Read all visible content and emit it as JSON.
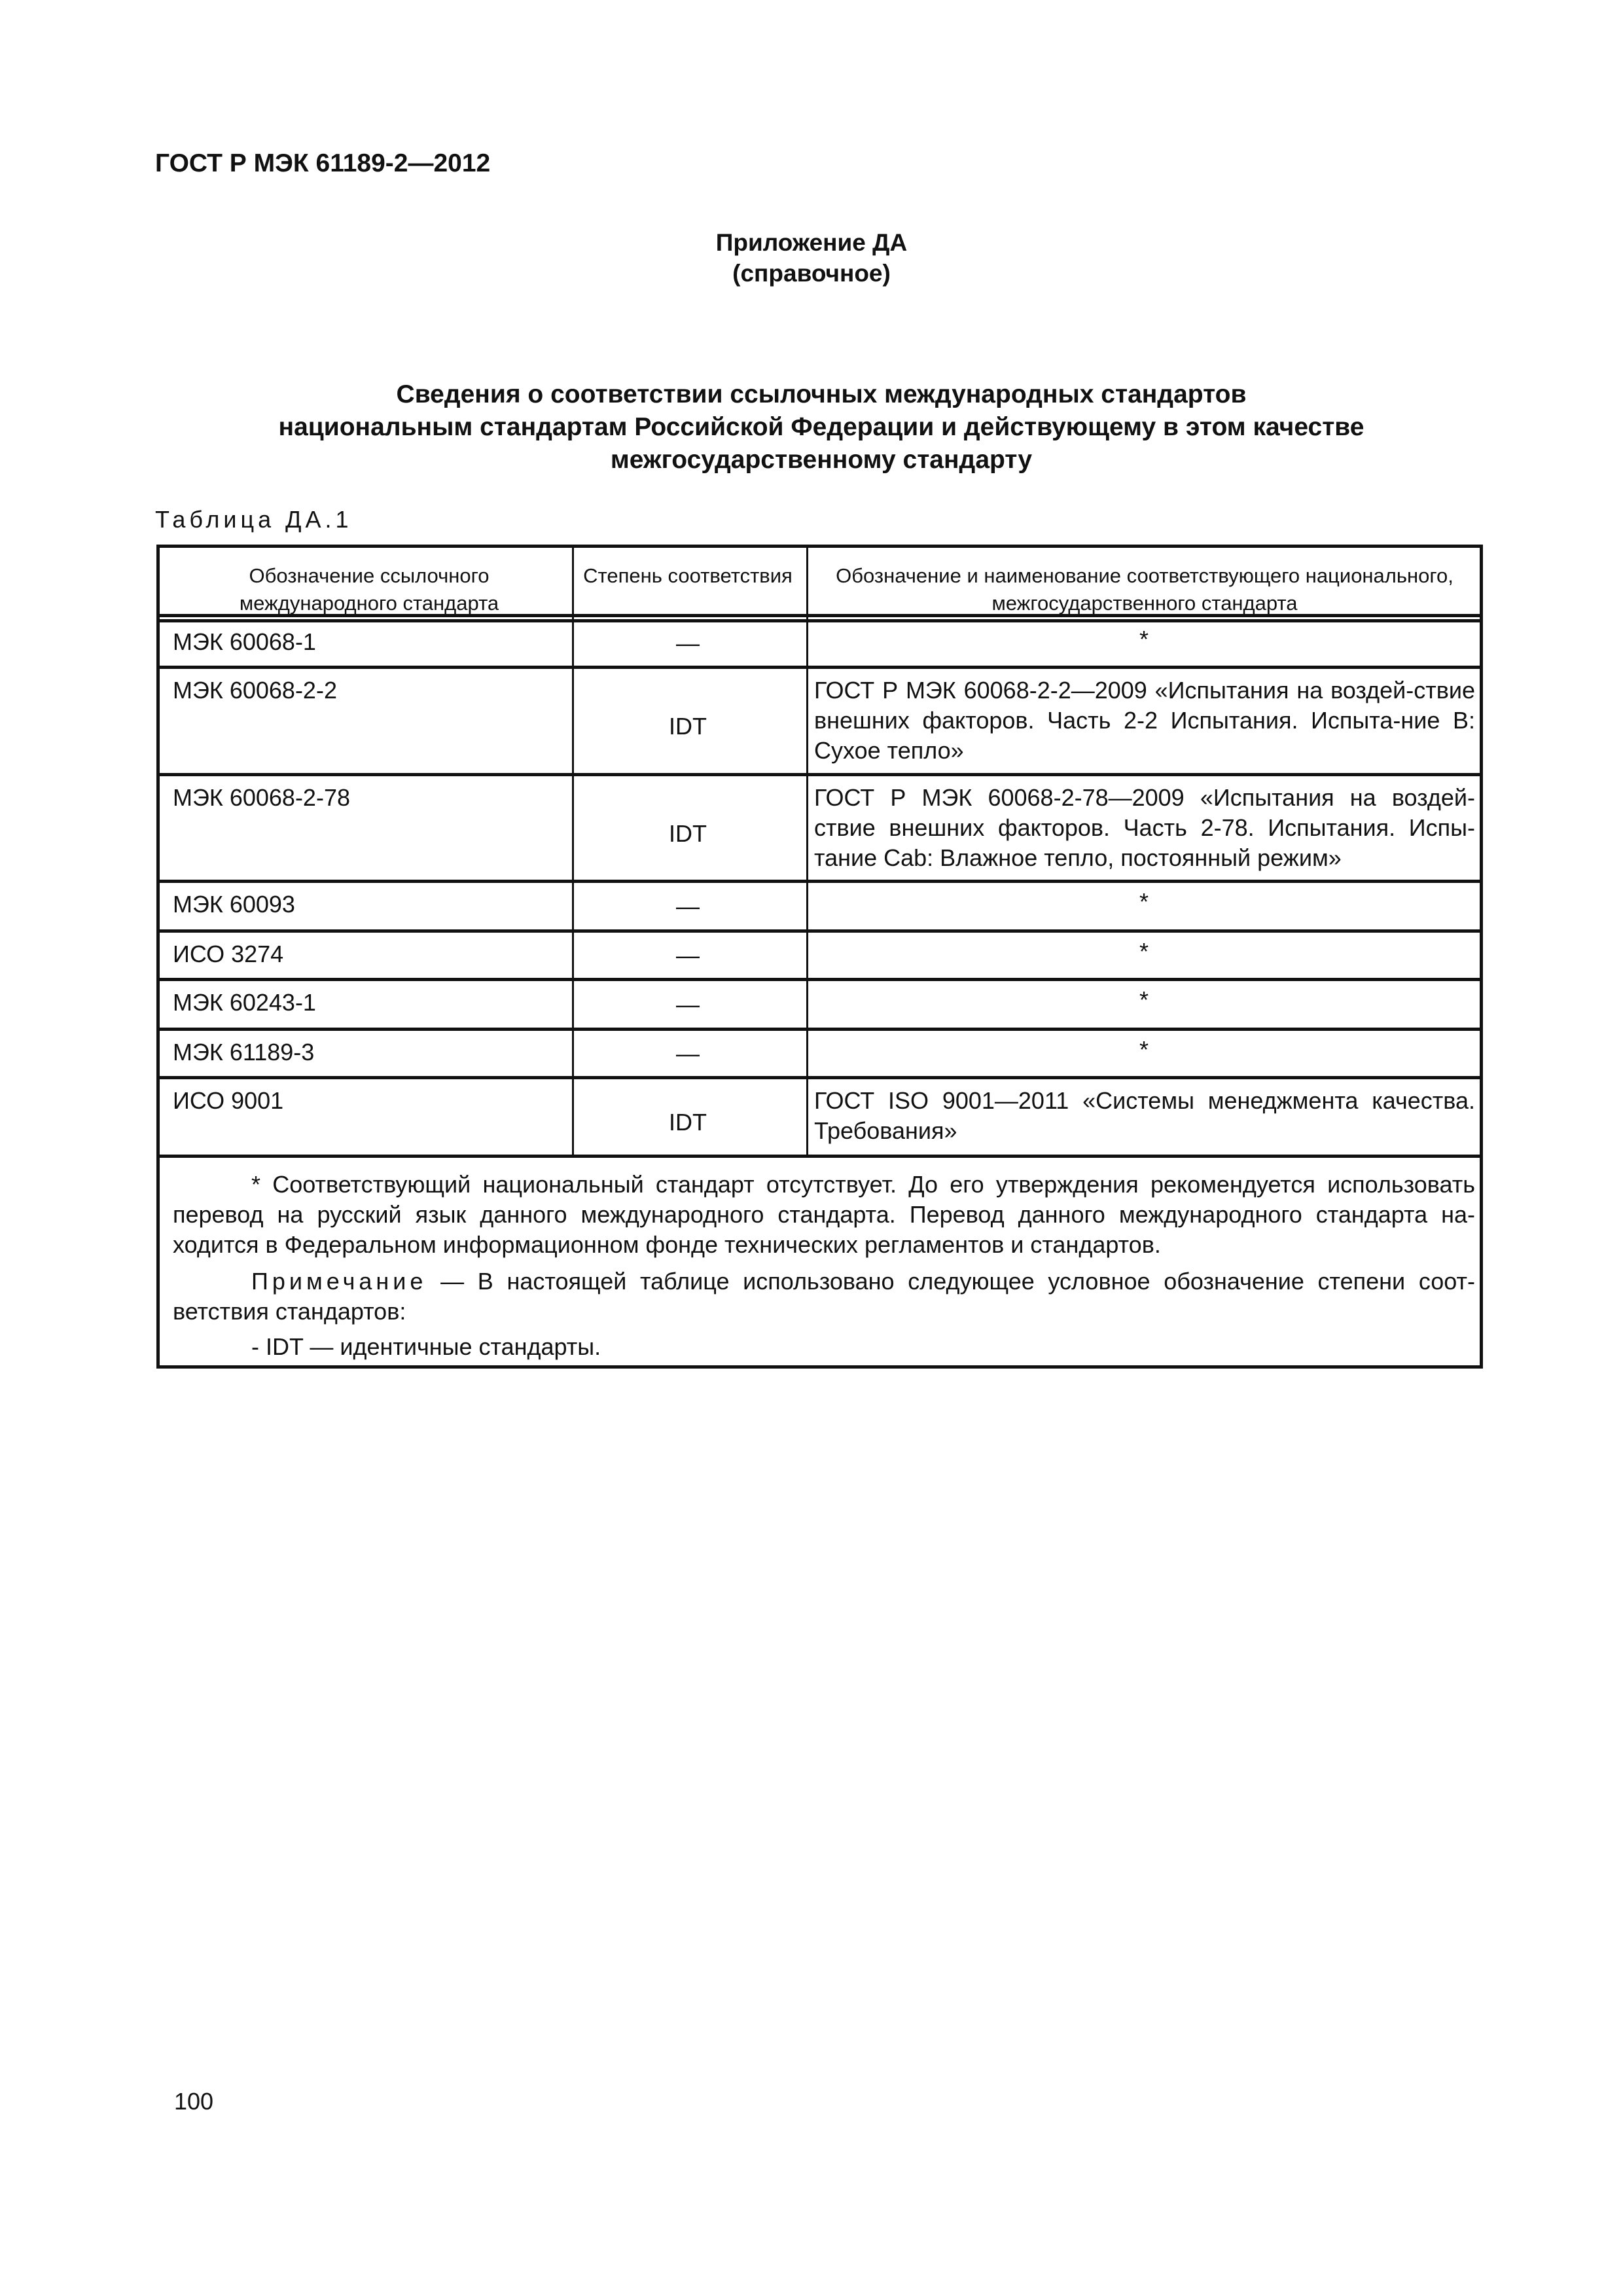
{
  "header": {
    "doc_code": "ГОСТ Р МЭК 61189-2—2012"
  },
  "appendix": {
    "name": "Приложение ДА",
    "type": "(справочное)"
  },
  "title": {
    "line1": "Сведения о соответствии ссылочных международных стандартов",
    "line2": "национальным стандартам Российской Федерации и действующему в этом качестве",
    "line3": "межгосударственному стандарту"
  },
  "table": {
    "label": "Таблица ДА.1",
    "columns": [
      "Обозначение ссылочного международного стандарта",
      "Степень соответствия",
      "Обозначение и наименование соответствующего национального, межгосударственного стандарта"
    ],
    "rows": [
      {
        "ref": "МЭК 60068-1",
        "degree": "—",
        "national": "*"
      },
      {
        "ref": "МЭК 60068-2-2",
        "degree": "IDT",
        "national": "ГОСТ Р МЭК 60068-2-2—2009 «Испытания на воздей-ствие внешних факторов. Часть 2-2 Испытания. Испыта-ние В: Сухое тепло»"
      },
      {
        "ref": "МЭК 60068-2-78",
        "degree": "IDT",
        "national": "ГОСТ Р МЭК 60068-2-78—2009 «Испытания на воздей-ствие внешних факторов. Часть 2-78. Испытания. Испы-тание Cab: Влажное тепло, постоянный режим»"
      },
      {
        "ref": "МЭК 60093",
        "degree": "—",
        "national": "*"
      },
      {
        "ref": "ИСО 3274",
        "degree": "—",
        "national": "*"
      },
      {
        "ref": "МЭК 60243-1",
        "degree": "—",
        "national": "*"
      },
      {
        "ref": "МЭК 61189-3",
        "degree": "—",
        "national": "*"
      },
      {
        "ref": "ИСО 9001",
        "degree": "IDT",
        "national": "ГОСТ ISO 9001—2011 «Системы менеджмента качества. Требования»"
      }
    ],
    "footnote": "* Соответствующий национальный стандарт отсутствует. До его утверждения рекомендуется использовать перевод на русский язык данного международного стандарта. Перевод данного международного стандарта на-ходится в Федеральном информационном фонде технических регламентов и стандартов.",
    "note_label": "Примечание",
    "note_text": " — В настоящей таблице использовано следующее условное обозначение степени соот-ветствия стандартов:",
    "legend": "- IDT — идентичные стандарты."
  },
  "page_number": "100"
}
